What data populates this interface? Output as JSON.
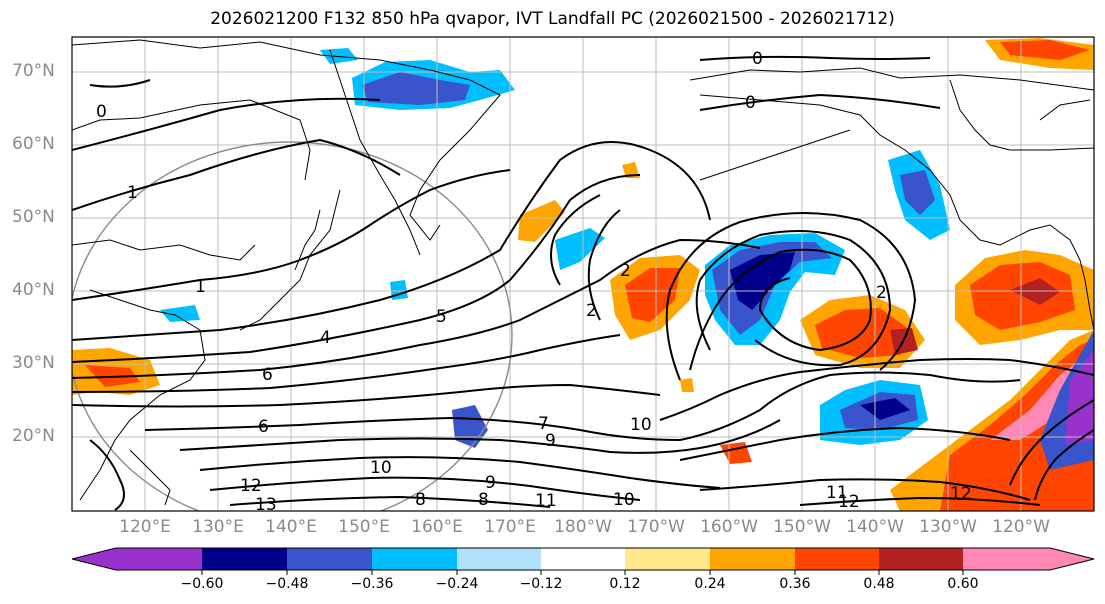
{
  "title": "2026021200 F132 850 hPa qvapor, IVT Landfall PC (2026021500 - 2026021712)",
  "lat_labels": [
    "70°N",
    "60°N",
    "50°N",
    "40°N",
    "30°N",
    "20°N"
  ],
  "lon_labels": [
    "120°E",
    "130°E",
    "140°E",
    "150°E",
    "160°E",
    "170°E",
    "180°W",
    "170°W",
    "160°W",
    "150°W",
    "140°W",
    "130°W",
    "120°W"
  ],
  "contour_labels": [
    "0",
    "0",
    "0",
    "1",
    "1",
    "2",
    "2",
    "2",
    "4",
    "5",
    "6",
    "6",
    "7",
    "9",
    "9",
    "10",
    "10",
    "10",
    "11",
    "11",
    "12",
    "12",
    "12",
    "13",
    "8",
    "8"
  ],
  "colorbar": {
    "colors": [
      "#9932cc",
      "#00008b",
      "#3a55cc",
      "#00bfff",
      "#b0e0fa",
      "#ffffff",
      "#ffe88a",
      "#ffa500",
      "#ff4500",
      "#b22222",
      "#ff88b4"
    ],
    "ticks": [
      "−0.60",
      "−0.48",
      "−0.36",
      "−0.24",
      "−0.12",
      "0.12",
      "0.24",
      "0.36",
      "0.48",
      "0.60"
    ]
  }
}
